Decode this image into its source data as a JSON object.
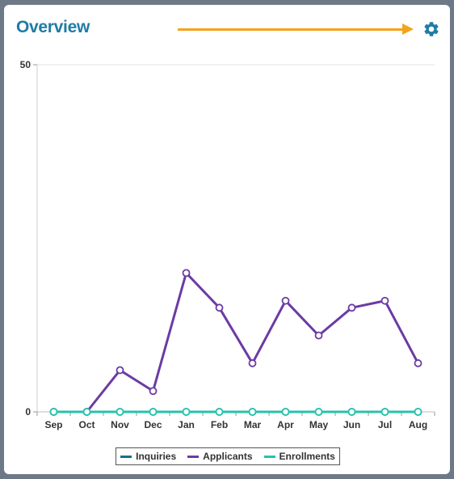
{
  "header": {
    "title": "Overview",
    "title_color": "#1f7ca4",
    "arrow_color": "#f3a41c",
    "settings_icon": "gear-icon",
    "settings_color": "#1f7ca4"
  },
  "chart_data": {
    "type": "line",
    "categories": [
      "Sep",
      "Oct",
      "Nov",
      "Dec",
      "Jan",
      "Feb",
      "Mar",
      "Apr",
      "May",
      "Jun",
      "Jul",
      "Aug"
    ],
    "series": [
      {
        "name": "Inquiries",
        "color": "#1a6e8e",
        "values": [
          0,
          0,
          0,
          0,
          0,
          0,
          0,
          0,
          0,
          0,
          0,
          0
        ]
      },
      {
        "name": "Applicants",
        "color": "#6b3ba4",
        "values": [
          0,
          0,
          6,
          3,
          20,
          15,
          7,
          16,
          11,
          15,
          16,
          7
        ]
      },
      {
        "name": "Enrollments",
        "color": "#26c3ad",
        "values": [
          0,
          0,
          0,
          0,
          0,
          0,
          0,
          0,
          0,
          0,
          0,
          0
        ]
      }
    ],
    "ylim": [
      0,
      50
    ],
    "yticks": [
      "0",
      "50"
    ],
    "grid": true,
    "legend_position": "bottom"
  }
}
